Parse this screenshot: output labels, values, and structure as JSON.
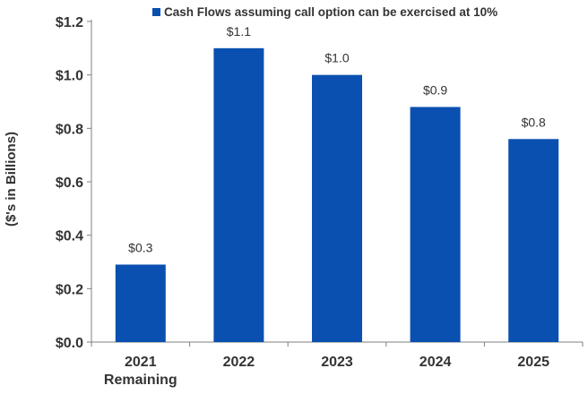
{
  "chart_data": {
    "type": "bar",
    "categories": [
      "2021\nRemaining",
      "2022",
      "2023",
      "2024",
      "2025"
    ],
    "series": [
      {
        "name": "Cash Flows assuming call option can be exercised at 10%",
        "values": [
          0.29,
          1.1,
          1.0,
          0.88,
          0.76
        ],
        "data_labels": [
          "$0.3",
          "$1.1",
          "$1.0",
          "$0.9",
          "$0.8"
        ],
        "color": "#0a50b0"
      }
    ],
    "ylabel": "($'s in Billions)",
    "xlabel": "",
    "ylim": [
      0,
      1.2
    ],
    "yticks": [
      0.0,
      0.2,
      0.4,
      0.6,
      0.8,
      1.0,
      1.2
    ],
    "ytick_labels": [
      "$0.0",
      "$0.2",
      "$0.4",
      "$0.6",
      "$0.8",
      "$1.0",
      "$1.2"
    ],
    "grid": false,
    "legend_position": "top"
  }
}
